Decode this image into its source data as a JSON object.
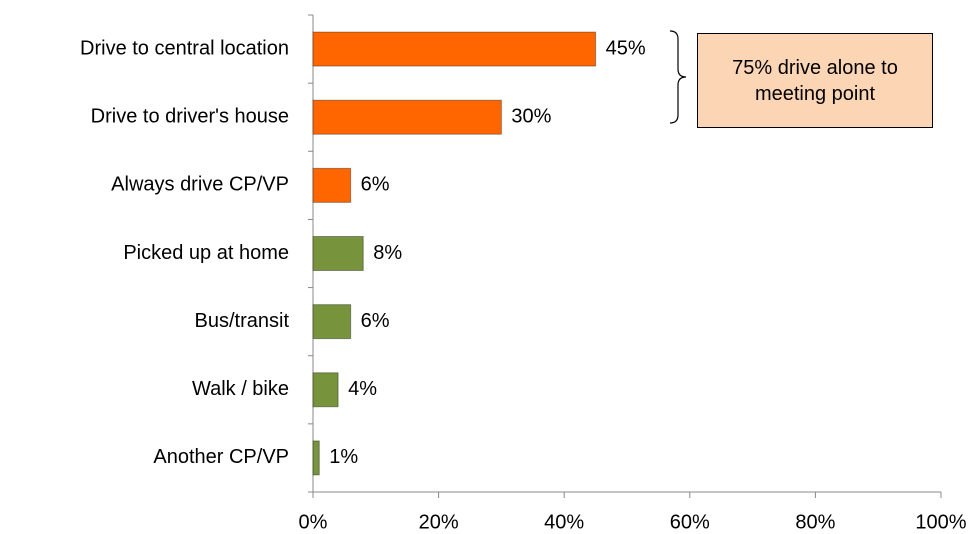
{
  "chart_data": {
    "type": "barh",
    "categories": [
      "Drive to central location",
      "Drive to driver's house",
      "Always drive CP/VP",
      "Picked up at home",
      "Bus/transit",
      "Walk / bike",
      "Another CP/VP"
    ],
    "values": [
      45,
      30,
      6,
      8,
      6,
      4,
      1
    ],
    "value_labels": [
      "45%",
      "30%",
      "6%",
      "8%",
      "6%",
      "4%",
      "1%"
    ],
    "colors": [
      "#ff6600",
      "#ff6600",
      "#ff6600",
      "#77933c",
      "#77933c",
      "#77933c",
      "#77933c"
    ],
    "xlim": [
      0,
      100
    ],
    "xticks": [
      {
        "value": 0,
        "label": "0%"
      },
      {
        "value": 20,
        "label": "20%"
      },
      {
        "value": 40,
        "label": "40%"
      },
      {
        "value": 60,
        "label": "60%"
      },
      {
        "value": 80,
        "label": "80%"
      },
      {
        "value": 100,
        "label": "100%"
      }
    ],
    "annotation": "75% drive alone to meeting point"
  }
}
